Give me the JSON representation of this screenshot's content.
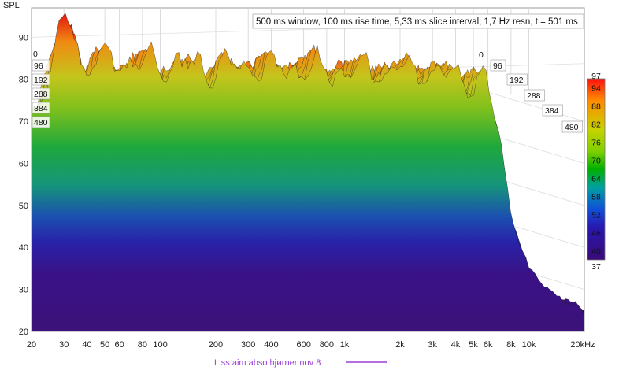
{
  "chart_data": {
    "type": "waterfall",
    "ylabel": "SPL",
    "info": "500 ms window, 100 ms rise time, 5,33 ms slice interval, 1,7 Hz resn, t = 501 ms",
    "x_scale": "log",
    "xlim": [
      20,
      20000
    ],
    "x_ticks": [
      {
        "value": 20,
        "label": "20"
      },
      {
        "value": 30,
        "label": "30"
      },
      {
        "value": 40,
        "label": "40"
      },
      {
        "value": 50,
        "label": "50"
      },
      {
        "value": 60,
        "label": "60"
      },
      {
        "value": 80,
        "label": "80"
      },
      {
        "value": 100,
        "label": "100"
      },
      {
        "value": 200,
        "label": "200"
      },
      {
        "value": 300,
        "label": "300"
      },
      {
        "value": 400,
        "label": "400"
      },
      {
        "value": 600,
        "label": "600"
      },
      {
        "value": 800,
        "label": "800"
      },
      {
        "value": 1000,
        "label": "1k"
      },
      {
        "value": 2000,
        "label": "2k"
      },
      {
        "value": 3000,
        "label": "3k"
      },
      {
        "value": 4000,
        "label": "4k"
      },
      {
        "value": 5000,
        "label": "5k"
      },
      {
        "value": 6000,
        "label": "6k"
      },
      {
        "value": 8000,
        "label": "8k"
      },
      {
        "value": 10000,
        "label": "10k"
      },
      {
        "value": 20000,
        "label": "20kHz"
      }
    ],
    "ylim": [
      20,
      97
    ],
    "y_ticks": [
      20,
      30,
      40,
      50,
      60,
      70,
      80,
      90
    ],
    "time_slices_ms": [
      "0",
      "96",
      "192",
      "288",
      "384",
      "480"
    ],
    "colorbar": {
      "min": 37,
      "max": 97,
      "labels": [
        "97",
        "94",
        "88",
        "82",
        "76",
        "70",
        "64",
        "58",
        "52",
        "46",
        "40",
        "37"
      ]
    },
    "legend": {
      "label": "L ss aim abso hjørner nov 8",
      "color": "#9b3fd6",
      "position": "bottom-center"
    },
    "front_slice_envelope": {
      "freq_hz": [
        20,
        24,
        28,
        30,
        32,
        34,
        38,
        45,
        55,
        70,
        100,
        150,
        200,
        300,
        400,
        600,
        800,
        1000,
        2000,
        3000,
        4000,
        5000,
        5500,
        6000,
        7000,
        8000,
        10000,
        20000
      ],
      "spl_db": [
        72,
        80,
        88,
        93,
        96,
        92,
        82,
        84,
        85,
        84,
        84,
        83,
        83,
        83,
        83,
        83,
        82,
        82,
        82,
        82,
        81,
        80,
        79,
        77,
        66,
        48,
        34,
        24
      ]
    }
  }
}
